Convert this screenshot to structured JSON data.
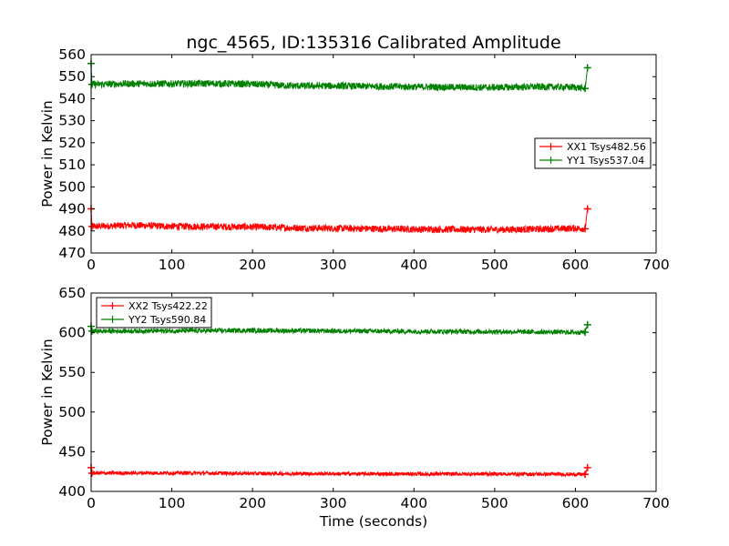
{
  "figure": {
    "title": "ngc_4565, ID:135316 Calibrated Amplitude",
    "xlabel": "Time (seconds)"
  },
  "chart_data": [
    {
      "type": "line",
      "ylabel": "Power in Kelvin",
      "xlim": [
        0,
        700
      ],
      "ylim": [
        470,
        560
      ],
      "xticks": [
        0,
        100,
        200,
        300,
        400,
        500,
        600,
        700
      ],
      "yticks": [
        470,
        480,
        490,
        500,
        510,
        520,
        530,
        540,
        550,
        560
      ],
      "legend_position": "center-right",
      "series": [
        {
          "name": "XX1 Tsys482.56",
          "color": "#ff0000",
          "noise": 1.6,
          "points": [
            [
              0,
              490
            ],
            [
              1,
              482
            ],
            [
              25,
              482.3
            ],
            [
              50,
              482.6
            ],
            [
              100,
              482.1
            ],
            [
              150,
              482.0
            ],
            [
              200,
              481.8
            ],
            [
              250,
              481.4
            ],
            [
              300,
              481.2
            ],
            [
              350,
              481.0
            ],
            [
              400,
              480.8
            ],
            [
              450,
              480.7
            ],
            [
              500,
              480.6
            ],
            [
              550,
              480.8
            ],
            [
              600,
              481.2
            ],
            [
              612,
              481.0
            ],
            [
              615,
              490
            ]
          ]
        },
        {
          "name": "YY1 Tsys537.04",
          "color": "#008000",
          "noise": 1.6,
          "points": [
            [
              0,
              556
            ],
            [
              1,
              546.5
            ],
            [
              50,
              546.8
            ],
            [
              100,
              546.8
            ],
            [
              150,
              546.9
            ],
            [
              200,
              546.6
            ],
            [
              250,
              545.8
            ],
            [
              300,
              545.8
            ],
            [
              350,
              545.6
            ],
            [
              400,
              545.4
            ],
            [
              450,
              545.2
            ],
            [
              500,
              545.1
            ],
            [
              550,
              545.4
            ],
            [
              600,
              545.2
            ],
            [
              612,
              544.6
            ],
            [
              615,
              554
            ]
          ]
        }
      ]
    },
    {
      "type": "line",
      "ylabel": "Power in Kelvin",
      "xlim": [
        0,
        700
      ],
      "ylim": [
        400,
        650
      ],
      "xticks": [
        0,
        100,
        200,
        300,
        400,
        500,
        600,
        700
      ],
      "yticks": [
        400,
        450,
        500,
        550,
        600,
        650
      ],
      "legend_position": "upper-left",
      "series": [
        {
          "name": "XX2 Tsys422.22",
          "color": "#ff0000",
          "noise": 2.4,
          "points": [
            [
              0,
              430
            ],
            [
              1,
              423
            ],
            [
              100,
              423.3
            ],
            [
              200,
              422.6
            ],
            [
              300,
              422.2
            ],
            [
              400,
              421.9
            ],
            [
              500,
              422.0
            ],
            [
              612,
              421.5
            ],
            [
              615,
              430
            ]
          ]
        },
        {
          "name": "YY2 Tsys590.84",
          "color": "#008000",
          "noise": 3.0,
          "points": [
            [
              0,
              608
            ],
            [
              1,
              602
            ],
            [
              100,
              602.3
            ],
            [
              200,
              602.8
            ],
            [
              300,
              602.2
            ],
            [
              400,
              601.7
            ],
            [
              500,
              601.3
            ],
            [
              612,
              600.5
            ],
            [
              615,
              610
            ]
          ]
        }
      ]
    }
  ]
}
